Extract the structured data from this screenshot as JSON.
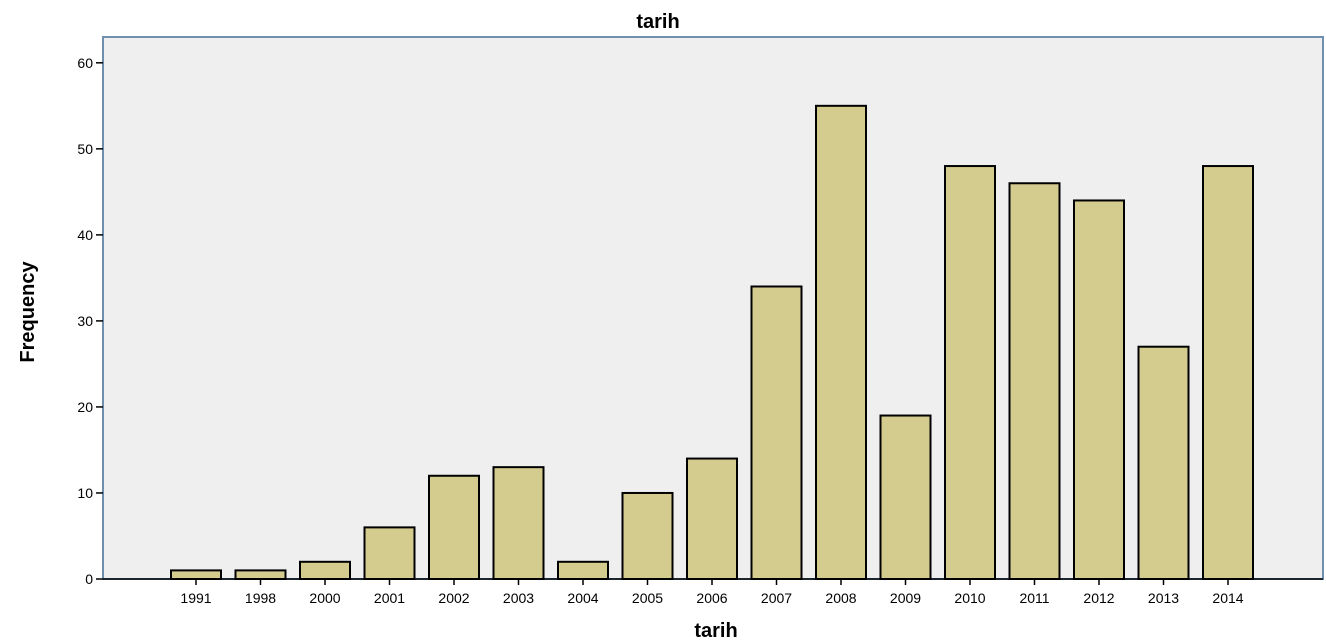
{
  "chart_data": {
    "type": "bar",
    "title": "tarih",
    "xlabel": "tarih",
    "ylabel": "Frequency",
    "categories": [
      "1991",
      "1998",
      "2000",
      "2001",
      "2002",
      "2003",
      "2004",
      "2005",
      "2006",
      "2007",
      "2008",
      "2009",
      "2010",
      "2011",
      "2012",
      "2013",
      "2014"
    ],
    "values": [
      1,
      1,
      2,
      6,
      12,
      13,
      2,
      10,
      14,
      34,
      55,
      19,
      48,
      46,
      44,
      27,
      48
    ],
    "ylim": [
      0,
      63
    ],
    "yticks": [
      0,
      10,
      20,
      30,
      40,
      50,
      60
    ],
    "grid": false,
    "legend": "none",
    "colors": {
      "bar_fill": "#d4cc8e",
      "bar_stroke": "#000000",
      "plot_background": "#efefef",
      "plot_border": "#6f8fae"
    }
  }
}
